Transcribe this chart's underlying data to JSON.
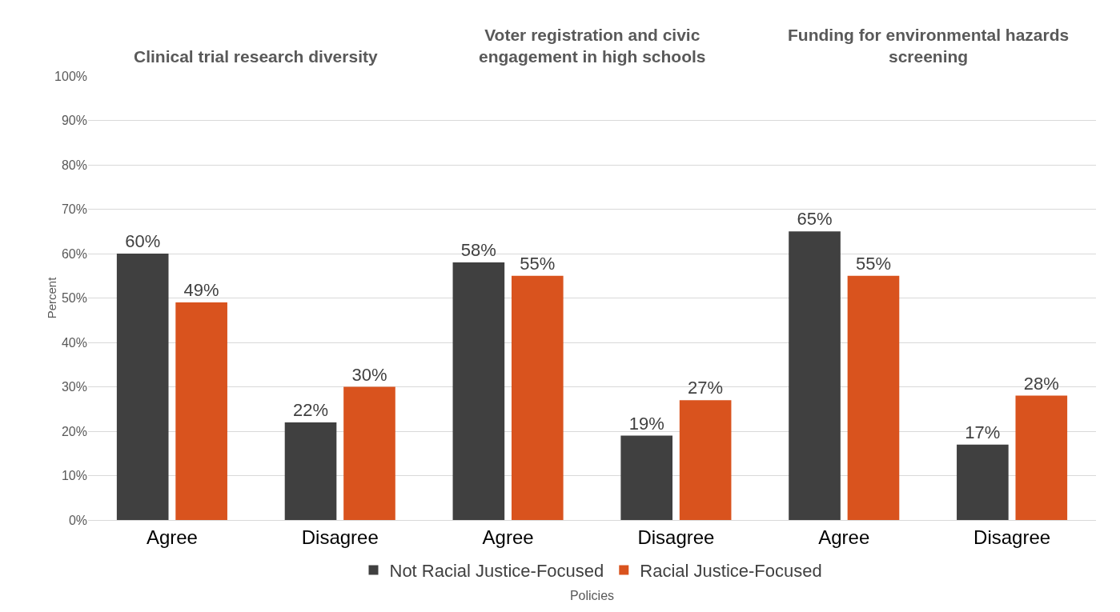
{
  "chart_data": {
    "type": "bar",
    "xlabel": "Policies",
    "ylabel": "Percent",
    "annotations": [
      "Clinical trial research diversity",
      "Voter registration and civic engagement in high schools",
      "Funding for environmental hazards screening"
    ],
    "categories": [
      "Agree",
      "Disagree",
      "Agree",
      "Disagree",
      "Agree",
      "Disagree"
    ],
    "series": [
      {
        "name": "Not Racial Justice-Focused",
        "color": "#404040",
        "values": [
          60,
          22,
          58,
          19,
          65,
          17
        ],
        "value_labels": [
          "60%",
          "22%",
          "58%",
          "19%",
          "65%",
          "17%"
        ]
      },
      {
        "name": "Racial Justice-Focused",
        "color": "#d9531e",
        "values": [
          49,
          30,
          55,
          27,
          55,
          28
        ],
        "value_labels": [
          "49%",
          "30%",
          "55%",
          "27%",
          "55%",
          "28%"
        ]
      }
    ],
    "ylim": [
      0,
      100
    ],
    "yticks": [
      {
        "value": 0,
        "label": "0%"
      },
      {
        "value": 10,
        "label": "10%"
      },
      {
        "value": 20,
        "label": "20%"
      },
      {
        "value": 30,
        "label": "30%"
      },
      {
        "value": 40,
        "label": "40%"
      },
      {
        "value": 50,
        "label": "50%"
      },
      {
        "value": 60,
        "label": "60%"
      },
      {
        "value": 70,
        "label": "70%"
      },
      {
        "value": 80,
        "label": "80%"
      },
      {
        "value": 90,
        "label": "90%"
      },
      {
        "value": 100,
        "label": "100%"
      }
    ],
    "grid": "y",
    "legend": "bottom"
  }
}
